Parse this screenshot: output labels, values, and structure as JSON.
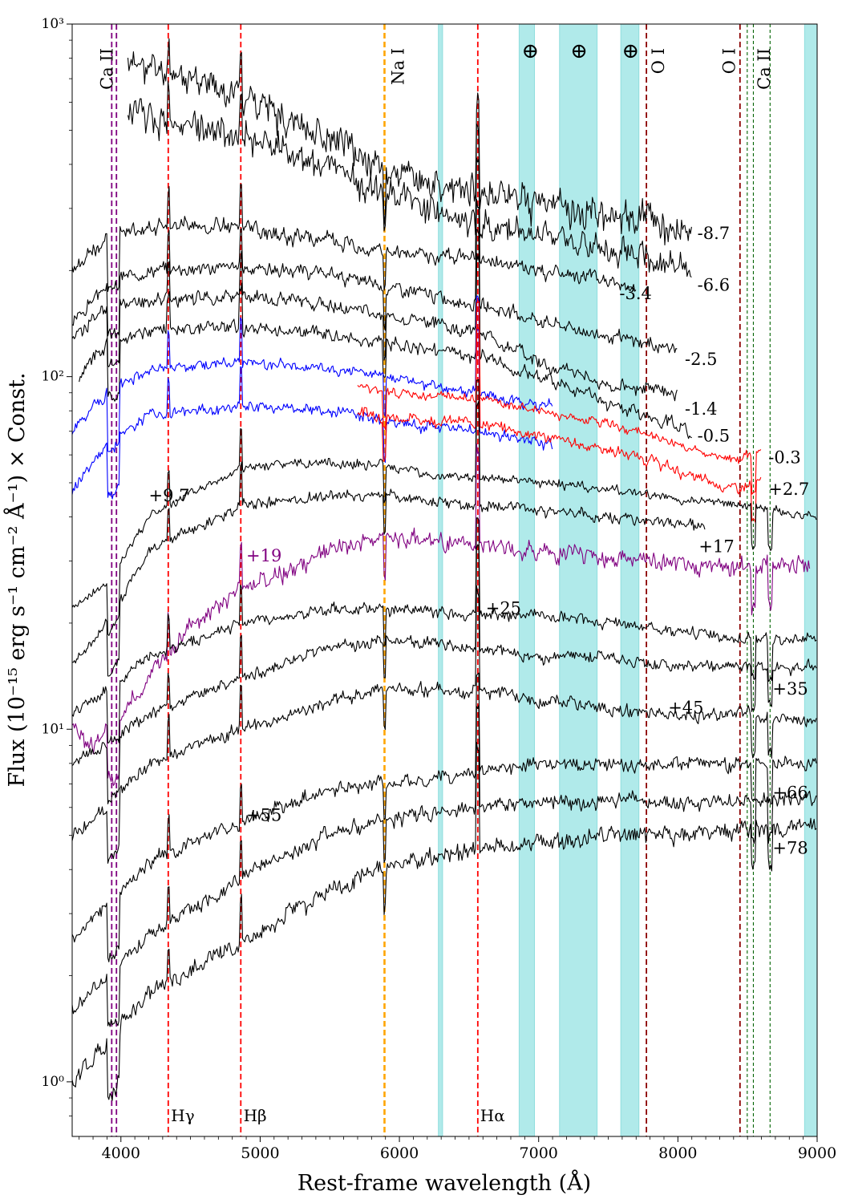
{
  "chart_data": {
    "type": "line",
    "xlabel": "Rest-frame wavelength (Å)",
    "ylabel": "Flux (10⁻¹⁵ erg s⁻¹ cm⁻² Å⁻¹) × Const.",
    "xlim": [
      3650,
      9000
    ],
    "ylim": [
      0.7,
      1000
    ],
    "y_scale": "log",
    "x_ticks": [
      4000,
      5000,
      6000,
      7000,
      8000,
      9000
    ],
    "x_tick_labels": [
      "4000",
      "5000",
      "6000",
      "7000",
      "8000",
      "9000"
    ],
    "y_ticks": [
      1,
      10,
      100,
      1000
    ],
    "y_tick_labels": [
      "10⁰",
      "10¹",
      "10²",
      "10³"
    ],
    "grid": false,
    "telluric_bands": [
      [
        6280,
        6310
      ],
      [
        6860,
        6970
      ],
      [
        7150,
        7420
      ],
      [
        7590,
        7720
      ],
      [
        8910,
        9000
      ]
    ],
    "telluric_symbol": "⊕",
    "telluric_symbol_x": [
      6940,
      7290,
      7660
    ],
    "lines": [
      {
        "label": "Ca II",
        "wavelengths": [
          3934,
          3968
        ],
        "color": "#800080",
        "label_x": 3900,
        "label_pos": "top"
      },
      {
        "label": "Hγ",
        "wavelengths": [
          4340
        ],
        "color": "#ff0000",
        "label_x": 4360,
        "label_pos": "bottom"
      },
      {
        "label": "Hβ",
        "wavelengths": [
          4861
        ],
        "color": "#ff0000",
        "label_x": 4880,
        "label_pos": "bottom"
      },
      {
        "label": "Na I",
        "wavelengths": [
          5893
        ],
        "color": "#ffa500",
        "label_x": 5990,
        "label_pos": "top"
      },
      {
        "label": "Hα",
        "wavelengths": [
          6563
        ],
        "color": "#ff0000",
        "label_x": 6580,
        "label_pos": "bottom"
      },
      {
        "label": "O I",
        "wavelengths": [
          7774
        ],
        "color": "#8b0000",
        "label_x": 7860,
        "label_pos": "top"
      },
      {
        "label": "O I",
        "wavelengths": [
          8446
        ],
        "color": "#8b0000",
        "label_x": 8370,
        "label_pos": "top"
      },
      {
        "label": "Ca II",
        "wavelengths": [
          8498,
          8542,
          8662
        ],
        "color": "#006400",
        "label_x": 8620,
        "label_pos": "top"
      }
    ],
    "series": [
      {
        "name": "-8.7",
        "color": "#000000",
        "x_range": [
          4050,
          8100
        ],
        "y": [
          [
            4050,
            780
          ],
          [
            4500,
            700
          ],
          [
            4861,
            640
          ],
          [
            5500,
            470
          ],
          [
            5893,
            390
          ],
          [
            6200,
            350
          ],
          [
            6563,
            340
          ],
          [
            7000,
            310
          ],
          [
            7500,
            290
          ],
          [
            7800,
            280
          ],
          [
            8100,
            260
          ]
        ],
        "label_x": 8140,
        "label_y": 255,
        "noise": 0.14,
        "seed": 11
      },
      {
        "name": "-6.6",
        "color": "#000000",
        "x_range": [
          4050,
          8100
        ],
        "y": [
          [
            4050,
            560
          ],
          [
            4500,
            520
          ],
          [
            4861,
            490
          ],
          [
            5500,
            390
          ],
          [
            5893,
            330
          ],
          [
            6563,
            270
          ],
          [
            7000,
            245
          ],
          [
            7500,
            225
          ],
          [
            7800,
            215
          ],
          [
            8100,
            195
          ]
        ],
        "label_x": 8140,
        "label_y": 182,
        "noise": 0.14,
        "seed": 12
      },
      {
        "name": "-3.4",
        "color": "#000000",
        "x_range": [
          3650,
          7700
        ],
        "y": [
          [
            3650,
            200
          ],
          [
            3900,
            250
          ],
          [
            4200,
            270
          ],
          [
            4861,
            265
          ],
          [
            5500,
            240
          ],
          [
            5893,
            225
          ],
          [
            6563,
            215
          ],
          [
            7000,
            200
          ],
          [
            7500,
            185
          ],
          [
            7700,
            180
          ]
        ],
        "label_x": 7580,
        "label_y": 172,
        "noise": 0.07,
        "seed": 13
      },
      {
        "name": "-2.5",
        "color": "#000000",
        "x_range": [
          3650,
          8000
        ],
        "y": [
          [
            3650,
            140
          ],
          [
            3900,
            185
          ],
          [
            4200,
            200
          ],
          [
            4861,
            205
          ],
          [
            5500,
            195
          ],
          [
            5893,
            180
          ],
          [
            6563,
            160
          ],
          [
            7000,
            145
          ],
          [
            7500,
            130
          ],
          [
            8000,
            120
          ]
        ],
        "label_x": 8050,
        "label_y": 112,
        "noise": 0.06,
        "seed": 14
      },
      {
        "name": "-1.4",
        "color": "#000000",
        "x_range": [
          3650,
          8000
        ],
        "y": [
          [
            3650,
            130
          ],
          [
            3900,
            155
          ],
          [
            4200,
            165
          ],
          [
            4861,
            170
          ],
          [
            5500,
            160
          ],
          [
            5893,
            150
          ],
          [
            6563,
            135
          ],
          [
            7000,
            110
          ],
          [
            7500,
            95
          ],
          [
            8000,
            90
          ]
        ],
        "label_x": 8050,
        "label_y": 81,
        "noise": 0.06,
        "seed": 15
      },
      {
        "name": "-0.5",
        "color": "#000000",
        "x_range": [
          3700,
          8100
        ],
        "y": [
          [
            3700,
            100
          ],
          [
            3900,
            125
          ],
          [
            4200,
            135
          ],
          [
            4861,
            138
          ],
          [
            5500,
            130
          ],
          [
            5893,
            125
          ],
          [
            6563,
            115
          ],
          [
            7000,
            100
          ],
          [
            7500,
            85
          ],
          [
            8100,
            70
          ]
        ],
        "label_x": 8140,
        "label_y": 68,
        "noise": 0.06,
        "seed": 16
      },
      {
        "name": "",
        "color": "#0000ff",
        "x_range": [
          3650,
          7100
        ],
        "y": [
          [
            3650,
            70
          ],
          [
            3900,
            90
          ],
          [
            4200,
            105
          ],
          [
            4861,
            110
          ],
          [
            5500,
            105
          ],
          [
            5893,
            100
          ],
          [
            6563,
            90
          ],
          [
            7100,
            82
          ]
        ],
        "label_x": null,
        "label_y": null,
        "noise": 0.05,
        "seed": 21
      },
      {
        "name": "",
        "color": "#0000ff",
        "x_range": [
          3650,
          7100
        ],
        "y": [
          [
            3650,
            48
          ],
          [
            3900,
            65
          ],
          [
            4200,
            78
          ],
          [
            4861,
            82
          ],
          [
            5500,
            80
          ],
          [
            5893,
            75
          ],
          [
            6563,
            70
          ],
          [
            7100,
            64
          ]
        ],
        "label_x": null,
        "label_y": null,
        "noise": 0.05,
        "seed": 22
      },
      {
        "name": "-0.3",
        "color": "#ff0000",
        "x_range": [
          5700,
          8600
        ],
        "y": [
          [
            5700,
            95
          ],
          [
            5893,
            90
          ],
          [
            6300,
            88
          ],
          [
            6563,
            87
          ],
          [
            7000,
            80
          ],
          [
            7500,
            73
          ],
          [
            7800,
            68
          ],
          [
            8100,
            62
          ],
          [
            8400,
            58
          ],
          [
            8600,
            62
          ]
        ],
        "label_x": 8650,
        "label_y": 59,
        "noise": 0.04,
        "seed": 31
      },
      {
        "name": "+2.7",
        "color": "#ff0000",
        "x_range": [
          5700,
          8600
        ],
        "y": [
          [
            5700,
            80
          ],
          [
            5893,
            77
          ],
          [
            6300,
            75
          ],
          [
            6563,
            74
          ],
          [
            7000,
            68
          ],
          [
            7500,
            62
          ],
          [
            7800,
            58
          ],
          [
            8100,
            52
          ],
          [
            8400,
            48
          ],
          [
            8600,
            50
          ]
        ],
        "label_x": 8650,
        "label_y": 48,
        "noise": 0.05,
        "seed": 32
      },
      {
        "name": "+9.7",
        "color": "#000000",
        "x_range": [
          3650,
          9000
        ],
        "y": [
          [
            3650,
            22
          ],
          [
            3900,
            26
          ],
          [
            4200,
            40
          ],
          [
            4861,
            55
          ],
          [
            5500,
            57
          ],
          [
            5893,
            56
          ],
          [
            6300,
            52
          ],
          [
            6563,
            52
          ],
          [
            7000,
            50
          ],
          [
            7500,
            48
          ],
          [
            8000,
            45
          ],
          [
            8500,
            43
          ],
          [
            9000,
            40
          ]
        ],
        "label_x": 4200,
        "label_y": 46,
        "noise": 0.04,
        "seed": 41
      },
      {
        "name": "+17",
        "color": "#000000",
        "x_range": [
          3650,
          8200
        ],
        "y": [
          [
            3650,
            15
          ],
          [
            3900,
            20
          ],
          [
            4200,
            32
          ],
          [
            4861,
            43
          ],
          [
            5500,
            46
          ],
          [
            5893,
            46
          ],
          [
            6300,
            44
          ],
          [
            6563,
            43
          ],
          [
            7000,
            42
          ],
          [
            7500,
            40
          ],
          [
            8000,
            38
          ],
          [
            8200,
            37
          ]
        ],
        "label_x": 8150,
        "label_y": 33,
        "noise": 0.05,
        "seed": 42
      },
      {
        "name": "+19",
        "color": "#800080",
        "x_range": [
          3650,
          8950
        ],
        "y": [
          [
            3650,
            10
          ],
          [
            3800,
            9
          ],
          [
            4000,
            11
          ],
          [
            4200,
            14
          ],
          [
            4500,
            20
          ],
          [
            4861,
            25
          ],
          [
            5200,
            28
          ],
          [
            5500,
            32
          ],
          [
            5893,
            35
          ],
          [
            6300,
            34
          ],
          [
            6563,
            33
          ],
          [
            7000,
            32
          ],
          [
            7500,
            31
          ],
          [
            8000,
            29
          ],
          [
            8500,
            29
          ],
          [
            8950,
            30
          ]
        ],
        "label_x": 4900,
        "label_y": 31,
        "noise": 0.08,
        "seed": 43
      },
      {
        "name": "+25",
        "color": "#000000",
        "x_range": [
          3650,
          9000
        ],
        "y": [
          [
            3650,
            11
          ],
          [
            3900,
            13
          ],
          [
            4200,
            16
          ],
          [
            4861,
            20
          ],
          [
            5500,
            22
          ],
          [
            5893,
            22
          ],
          [
            6563,
            21
          ],
          [
            7000,
            21
          ],
          [
            7500,
            20
          ],
          [
            8000,
            19
          ],
          [
            8500,
            18
          ],
          [
            9000,
            18
          ]
        ],
        "label_x": 6620,
        "label_y": 22,
        "noise": 0.05,
        "seed": 44
      },
      {
        "name": "+35",
        "color": "#000000",
        "x_range": [
          3650,
          9000
        ],
        "y": [
          [
            3650,
            8
          ],
          [
            3900,
            9
          ],
          [
            4200,
            11
          ],
          [
            4861,
            14
          ],
          [
            5500,
            17
          ],
          [
            5893,
            18
          ],
          [
            6563,
            17
          ],
          [
            7000,
            16
          ],
          [
            7500,
            16
          ],
          [
            8000,
            15
          ],
          [
            8500,
            15
          ],
          [
            9000,
            15
          ]
        ],
        "label_x": 8680,
        "label_y": 13,
        "noise": 0.05,
        "seed": 45
      },
      {
        "name": "+45",
        "color": "#000000",
        "x_range": [
          3650,
          9000
        ],
        "y": [
          [
            3650,
            5
          ],
          [
            3900,
            6
          ],
          [
            4200,
            8
          ],
          [
            4861,
            10
          ],
          [
            5500,
            12
          ],
          [
            5893,
            13
          ],
          [
            6563,
            13
          ],
          [
            7000,
            12
          ],
          [
            7500,
            11.5
          ],
          [
            8000,
            11
          ],
          [
            8500,
            11
          ],
          [
            9000,
            10.5
          ]
        ],
        "label_x": 7930,
        "label_y": 11.5,
        "noise": 0.06,
        "seed": 46
      },
      {
        "name": "+55",
        "color": "#000000",
        "x_range": [
          3650,
          9000
        ],
        "y": [
          [
            3650,
            2.5
          ],
          [
            3900,
            3.2
          ],
          [
            4200,
            4.2
          ],
          [
            4861,
            5.5
          ],
          [
            5500,
            6.8
          ],
          [
            5893,
            7
          ],
          [
            6563,
            7.5
          ],
          [
            7000,
            8
          ],
          [
            7500,
            8
          ],
          [
            8000,
            8
          ],
          [
            8500,
            8
          ],
          [
            9000,
            8
          ]
        ],
        "label_x": 4900,
        "label_y": 5.7,
        "noise": 0.06,
        "seed": 47
      },
      {
        "name": "+66",
        "color": "#000000",
        "x_range": [
          3650,
          9000
        ],
        "y": [
          [
            3650,
            1.6
          ],
          [
            3900,
            2
          ],
          [
            4200,
            2.6
          ],
          [
            4861,
            3.8
          ],
          [
            5500,
            5
          ],
          [
            5893,
            5.6
          ],
          [
            6563,
            6
          ],
          [
            7000,
            6.2
          ],
          [
            7500,
            6.2
          ],
          [
            8000,
            6.2
          ],
          [
            8500,
            6.3
          ],
          [
            9000,
            6.4
          ]
        ],
        "label_x": 8680,
        "label_y": 6.6,
        "noise": 0.07,
        "seed": 48
      },
      {
        "name": "+78",
        "color": "#000000",
        "x_range": [
          3650,
          9000
        ],
        "y": [
          [
            3650,
            1
          ],
          [
            3900,
            1.3
          ],
          [
            4200,
            1.8
          ],
          [
            4861,
            2.5
          ],
          [
            5500,
            3.5
          ],
          [
            5893,
            4
          ],
          [
            6563,
            4.6
          ],
          [
            7000,
            4.8
          ],
          [
            7500,
            5
          ],
          [
            8000,
            5
          ],
          [
            8500,
            5.2
          ],
          [
            9000,
            5.3
          ]
        ],
        "label_x": 8680,
        "label_y": 4.6,
        "noise": 0.08,
        "seed": 49
      }
    ]
  }
}
